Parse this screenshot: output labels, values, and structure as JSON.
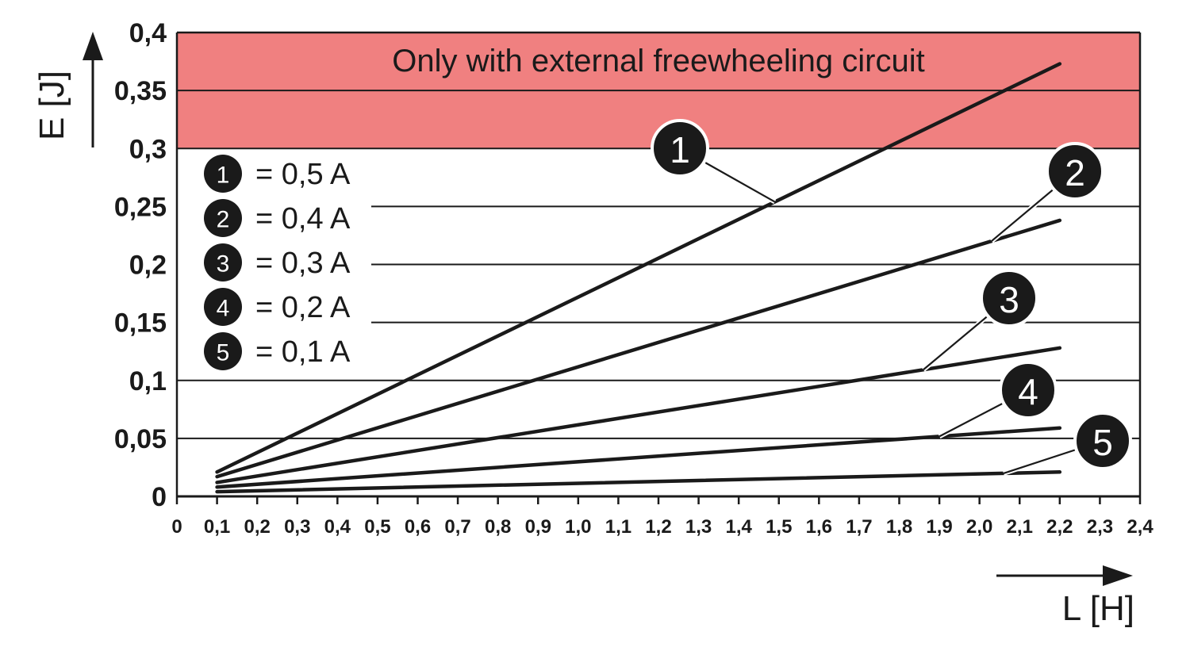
{
  "chart_data": {
    "type": "line",
    "xlabel": "L [H]",
    "ylabel": "E [J]",
    "xlim": [
      0,
      2.4
    ],
    "ylim": [
      0,
      0.4
    ],
    "x_ticks": [
      "0",
      "0,1",
      "0,2",
      "0,3",
      "0,4",
      "0,5",
      "0,6",
      "0,7",
      "0,8",
      "0,9",
      "1,0",
      "1,1",
      "1,2",
      "1,3",
      "1,4",
      "1,5",
      "1,6",
      "1,7",
      "1,8",
      "1,9",
      "2,0",
      "2,1",
      "2,2",
      "2,3",
      "2,4"
    ],
    "y_ticks": [
      "0",
      "0,05",
      "0,1",
      "0,15",
      "0,2",
      "0,25",
      "0,3",
      "0,35",
      "0,4"
    ],
    "grid": "horizontal",
    "region": {
      "label": "Only with external freewheeling circuit",
      "y_from": 0.3,
      "y_to": 0.4,
      "color": "#f08080"
    },
    "series": [
      {
        "marker": "1",
        "current": "= 0,5 A",
        "x": [
          0.1,
          2.2
        ],
        "y": [
          0.021,
          0.373
        ]
      },
      {
        "marker": "2",
        "current": "= 0,4 A",
        "x": [
          0.1,
          2.2
        ],
        "y": [
          0.017,
          0.238
        ]
      },
      {
        "marker": "3",
        "current": "= 0,3 A",
        "x": [
          0.1,
          2.2
        ],
        "y": [
          0.012,
          0.128
        ]
      },
      {
        "marker": "4",
        "current": "= 0,2 A",
        "x": [
          0.1,
          2.2
        ],
        "y": [
          0.008,
          0.059
        ]
      },
      {
        "marker": "5",
        "current": "= 0,1 A",
        "x": [
          0.1,
          2.2
        ],
        "y": [
          0.004,
          0.021
        ]
      }
    ],
    "callouts": [
      {
        "marker": "1",
        "at_x": 1.49
      },
      {
        "marker": "2",
        "at_x": 2.03
      },
      {
        "marker": "3",
        "at_x": 1.86
      },
      {
        "marker": "4",
        "at_x": 1.9
      },
      {
        "marker": "5",
        "at_x": 2.06
      }
    ],
    "colors": {
      "line": "#1a1a1a",
      "grid": "#1a1a1a",
      "band": "#f08080",
      "marker_fill": "#1a1a1a",
      "marker_text": "#ffffff"
    }
  }
}
